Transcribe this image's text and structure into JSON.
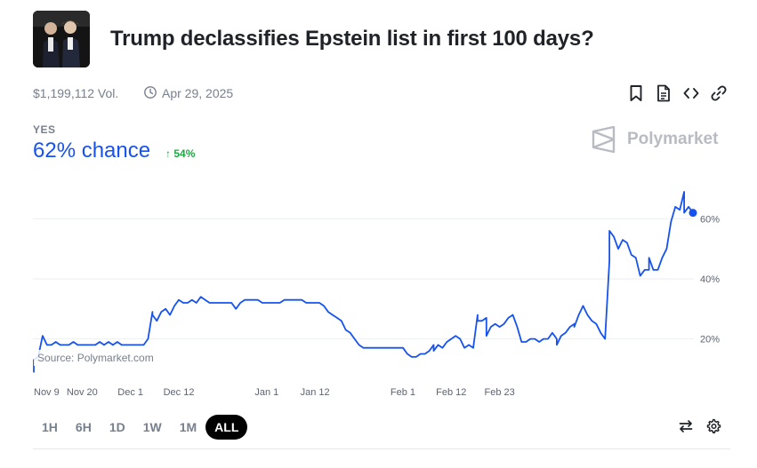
{
  "market": {
    "title": "Trump declassifies Epstein list in first 100 days?",
    "volume": "$1,199,112 Vol.",
    "end_date": "Apr 29, 2025"
  },
  "icons": {
    "clock": "clock-icon",
    "bookmark": "bookmark-icon",
    "document": "document-icon",
    "embed": "code-icon",
    "link": "link-icon",
    "swap": "swap-arrows-icon",
    "settings": "gear-icon"
  },
  "outcome": {
    "label": "YES",
    "chance": "62% chance",
    "change": "54%",
    "change_arrow": "↑"
  },
  "brand": {
    "name": "Polymarket"
  },
  "colors": {
    "line": "#1652f0",
    "positive": "#22a447",
    "muted": "#77808d",
    "grid": "#eceef0"
  },
  "chart_data": {
    "type": "line",
    "title": "",
    "xlabel": "",
    "ylabel": "",
    "x_tick_labels": [
      "Nov 9",
      "Nov 20",
      "Dec 1",
      "Dec 12",
      "Jan 1",
      "Jan 12",
      "Feb 1",
      "Feb 12",
      "Feb 23"
    ],
    "x_tick_dates": [
      "2024-11-09",
      "2024-11-20",
      "2024-12-01",
      "2024-12-12",
      "2025-01-01",
      "2025-01-12",
      "2025-02-01",
      "2025-02-12",
      "2025-02-23"
    ],
    "y_ticks": [
      20,
      40,
      60
    ],
    "y_tick_labels": [
      "20%",
      "40%",
      "60%"
    ],
    "ylim": [
      6,
      70
    ],
    "grid": true,
    "source": "Source: Polymarket.com",
    "series": [
      {
        "points": [
          [
            "2024-11-09",
            9
          ],
          [
            "2024-11-09",
            13
          ],
          [
            "2024-11-10",
            14
          ],
          [
            "2024-11-11",
            21
          ],
          [
            "2024-11-12",
            18
          ],
          [
            "2024-11-13",
            18
          ],
          [
            "2024-11-14",
            19
          ],
          [
            "2024-11-15",
            18
          ],
          [
            "2024-11-16",
            18
          ],
          [
            "2024-11-17",
            18
          ],
          [
            "2024-11-18",
            19
          ],
          [
            "2024-11-19",
            18
          ],
          [
            "2024-11-20",
            18
          ],
          [
            "2024-11-21",
            18
          ],
          [
            "2024-11-22",
            18
          ],
          [
            "2024-11-23",
            18
          ],
          [
            "2024-11-24",
            19
          ],
          [
            "2024-11-25",
            18
          ],
          [
            "2024-11-26",
            19
          ],
          [
            "2024-11-27",
            18
          ],
          [
            "2024-11-28",
            19
          ],
          [
            "2024-11-29",
            18
          ],
          [
            "2024-11-30",
            18
          ],
          [
            "2024-12-01",
            18
          ],
          [
            "2024-12-02",
            18
          ],
          [
            "2024-12-03",
            18
          ],
          [
            "2024-12-04",
            18
          ],
          [
            "2024-12-05",
            20
          ],
          [
            "2024-12-06",
            29
          ],
          [
            "2024-12-06",
            28
          ],
          [
            "2024-12-07",
            26
          ],
          [
            "2024-12-08",
            29
          ],
          [
            "2024-12-09",
            30
          ],
          [
            "2024-12-10",
            28
          ],
          [
            "2024-12-11",
            31
          ],
          [
            "2024-12-12",
            33
          ],
          [
            "2024-12-13",
            32
          ],
          [
            "2024-12-14",
            32
          ],
          [
            "2024-12-15",
            33
          ],
          [
            "2024-12-16",
            32
          ],
          [
            "2024-12-17",
            34
          ],
          [
            "2024-12-18",
            33
          ],
          [
            "2024-12-19",
            32
          ],
          [
            "2024-12-21",
            32
          ],
          [
            "2024-12-23",
            32
          ],
          [
            "2024-12-24",
            32
          ],
          [
            "2024-12-25",
            30
          ],
          [
            "2024-12-26",
            32
          ],
          [
            "2024-12-27",
            33
          ],
          [
            "2024-12-28",
            33
          ],
          [
            "2024-12-30",
            33
          ],
          [
            "2024-12-31",
            32
          ],
          [
            "2025-01-02",
            32
          ],
          [
            "2025-01-04",
            32
          ],
          [
            "2025-01-05",
            33
          ],
          [
            "2025-01-06",
            33
          ],
          [
            "2025-01-07",
            33
          ],
          [
            "2025-01-08",
            33
          ],
          [
            "2025-01-09",
            33
          ],
          [
            "2025-01-10",
            32
          ],
          [
            "2025-01-11",
            32
          ],
          [
            "2025-01-12",
            32
          ],
          [
            "2025-01-13",
            32
          ],
          [
            "2025-01-14",
            31
          ],
          [
            "2025-01-15",
            29
          ],
          [
            "2025-01-16",
            28
          ],
          [
            "2025-01-17",
            27
          ],
          [
            "2025-01-18",
            26
          ],
          [
            "2025-01-19",
            23
          ],
          [
            "2025-01-20",
            22
          ],
          [
            "2025-01-21",
            20
          ],
          [
            "2025-01-22",
            18
          ],
          [
            "2025-01-23",
            17
          ],
          [
            "2025-01-24",
            17
          ],
          [
            "2025-01-25",
            17
          ],
          [
            "2025-01-26",
            17
          ],
          [
            "2025-01-27",
            17
          ],
          [
            "2025-01-28",
            17
          ],
          [
            "2025-01-29",
            17
          ],
          [
            "2025-01-30",
            17
          ],
          [
            "2025-01-31",
            17
          ],
          [
            "2025-02-01",
            17
          ],
          [
            "2025-02-02",
            15
          ],
          [
            "2025-02-03",
            14
          ],
          [
            "2025-02-04",
            14
          ],
          [
            "2025-02-05",
            15
          ],
          [
            "2025-02-06",
            15
          ],
          [
            "2025-02-07",
            16
          ],
          [
            "2025-02-08",
            18
          ],
          [
            "2025-02-08",
            16
          ],
          [
            "2025-02-09",
            18
          ],
          [
            "2025-02-10",
            17
          ],
          [
            "2025-02-11",
            19
          ],
          [
            "2025-02-12",
            20
          ],
          [
            "2025-02-13",
            21
          ],
          [
            "2025-02-14",
            20
          ],
          [
            "2025-02-15",
            17
          ],
          [
            "2025-02-16",
            18
          ],
          [
            "2025-02-17",
            17
          ],
          [
            "2025-02-18",
            28
          ],
          [
            "2025-02-18",
            26
          ],
          [
            "2025-02-19",
            26
          ],
          [
            "2025-02-20",
            27
          ],
          [
            "2025-02-20",
            21
          ],
          [
            "2025-02-21",
            24
          ],
          [
            "2025-02-22",
            25
          ],
          [
            "2025-02-23",
            24
          ],
          [
            "2025-02-24",
            25
          ],
          [
            "2025-02-25",
            27
          ],
          [
            "2025-02-26",
            28
          ],
          [
            "2025-02-27",
            24
          ],
          [
            "2025-02-28",
            19
          ],
          [
            "2025-03-01",
            19
          ],
          [
            "2025-03-02",
            20
          ],
          [
            "2025-03-03",
            20
          ],
          [
            "2025-03-04",
            19
          ],
          [
            "2025-03-05",
            20
          ],
          [
            "2025-03-06",
            20
          ],
          [
            "2025-03-07",
            22
          ],
          [
            "2025-03-08",
            20
          ],
          [
            "2025-03-08",
            18
          ],
          [
            "2025-03-09",
            21
          ],
          [
            "2025-03-10",
            22
          ],
          [
            "2025-03-11",
            24
          ],
          [
            "2025-03-12",
            25
          ],
          [
            "2025-03-12",
            24
          ],
          [
            "2025-03-13",
            28
          ],
          [
            "2025-03-14",
            31
          ],
          [
            "2025-03-15",
            28
          ],
          [
            "2025-03-16",
            26
          ],
          [
            "2025-03-17",
            25
          ],
          [
            "2025-03-18",
            22
          ],
          [
            "2025-03-19",
            20
          ],
          [
            "2025-03-20",
            46
          ],
          [
            "2025-03-20",
            56
          ],
          [
            "2025-03-21",
            54
          ],
          [
            "2025-03-22",
            50
          ],
          [
            "2025-03-23",
            53
          ],
          [
            "2025-03-24",
            52
          ],
          [
            "2025-03-25",
            48
          ],
          [
            "2025-03-26",
            47
          ],
          [
            "2025-03-27",
            41
          ],
          [
            "2025-03-28",
            43
          ],
          [
            "2025-03-29",
            43
          ],
          [
            "2025-03-29",
            47
          ],
          [
            "2025-03-30",
            43
          ],
          [
            "2025-03-31",
            43
          ],
          [
            "2025-04-01",
            47
          ],
          [
            "2025-04-02",
            50
          ],
          [
            "2025-04-03",
            59
          ],
          [
            "2025-04-04",
            64
          ],
          [
            "2025-04-05",
            63
          ],
          [
            "2025-04-06",
            69
          ],
          [
            "2025-04-06",
            62
          ],
          [
            "2025-04-07",
            64
          ],
          [
            "2025-04-08",
            62
          ]
        ]
      }
    ],
    "last_value": 62
  },
  "ranges": {
    "items": [
      "1H",
      "6H",
      "1D",
      "1W",
      "1M",
      "ALL"
    ],
    "active": "ALL"
  }
}
